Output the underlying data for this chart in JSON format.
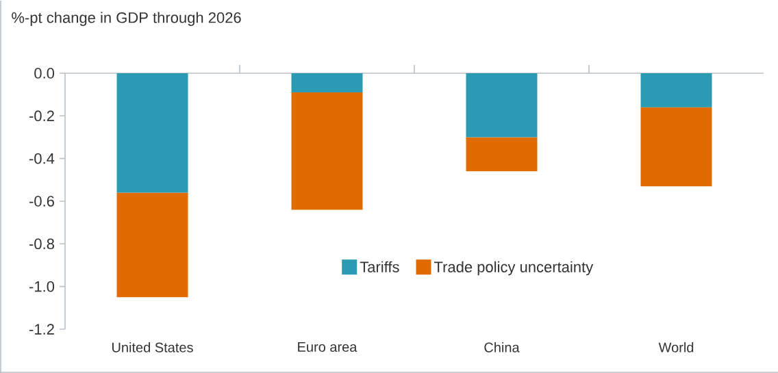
{
  "chart_data": {
    "type": "bar",
    "stacked": true,
    "title": "%-pt change in GDP through 2026",
    "categories": [
      "United States",
      "Euro area",
      "China",
      "World"
    ],
    "series": [
      {
        "name": "Tariffs",
        "color": "#2a9bb3",
        "values": [
          -0.56,
          -0.09,
          -0.3,
          -0.16
        ]
      },
      {
        "name": "Trade policy uncertainty",
        "color": "#e06c00",
        "values": [
          -0.49,
          -0.55,
          -0.16,
          -0.37
        ]
      }
    ],
    "ylim": [
      -1.2,
      0
    ],
    "yticks": [
      {
        "value": -1.2,
        "label": "-1.2"
      },
      {
        "value": -1.0,
        "label": "-1.0"
      },
      {
        "value": -0.8,
        "label": "-0.8"
      },
      {
        "value": -0.6,
        "label": "-0.6"
      },
      {
        "value": -0.4,
        "label": "-0.4"
      },
      {
        "value": -0.2,
        "label": "-0.2"
      },
      {
        "value": 0,
        "label": "0.0"
      }
    ],
    "grid": false,
    "legend": "bottom right"
  }
}
